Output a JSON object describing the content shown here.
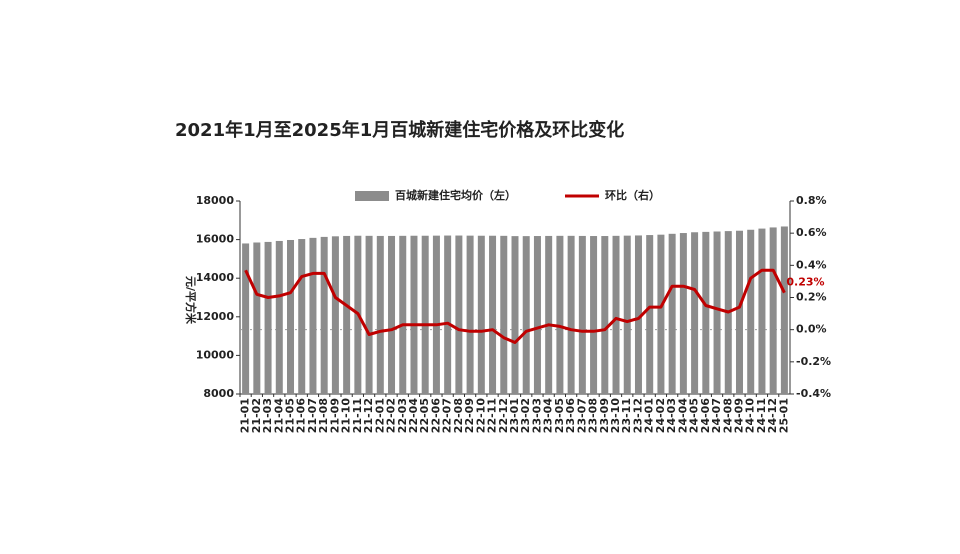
{
  "chart_data": {
    "type": "bar-line",
    "title": "2021年1月至2025年1月百城新建住宅价格及环比变化",
    "y_label": "元/平方米",
    "categories": [
      "21-01",
      "21-02",
      "21-03",
      "21-04",
      "21-05",
      "21-06",
      "21-07",
      "21-08",
      "21-09",
      "21-10",
      "21-11",
      "21-12",
      "22-01",
      "22-02",
      "22-03",
      "22-04",
      "22-05",
      "22-06",
      "22-07",
      "22-08",
      "22-09",
      "22-10",
      "22-11",
      "22-12",
      "23-01",
      "23-02",
      "23-03",
      "23-04",
      "23-05",
      "23-06",
      "23-07",
      "23-08",
      "23-09",
      "23-10",
      "23-11",
      "23-12",
      "24-01",
      "24-02",
      "24-03",
      "24-04",
      "24-05",
      "24-06",
      "24-07",
      "24-08",
      "24-09",
      "24-10",
      "24-11",
      "24-12",
      "25-01"
    ],
    "series": [
      {
        "name": "百城新建住宅均价（左）",
        "type": "bar",
        "color": "#8c8c8c",
        "values": [
          15800,
          15850,
          15880,
          15930,
          15980,
          16030,
          16090,
          16140,
          16170,
          16190,
          16200,
          16195,
          16190,
          16190,
          16195,
          16200,
          16200,
          16205,
          16210,
          16210,
          16205,
          16200,
          16200,
          16195,
          16180,
          16180,
          16185,
          16190,
          16195,
          16195,
          16190,
          16185,
          16185,
          16195,
          16205,
          16215,
          16235,
          16255,
          16300,
          16340,
          16380,
          16400,
          16420,
          16440,
          16460,
          16510,
          16570,
          16630,
          16680
        ]
      },
      {
        "name": "环比（右）",
        "type": "line",
        "axis": "y2",
        "color": "#c00000",
        "values": [
          0.37,
          0.22,
          0.2,
          0.21,
          0.23,
          0.33,
          0.35,
          0.35,
          0.2,
          0.15,
          0.1,
          -0.03,
          -0.01,
          0.0,
          0.03,
          0.03,
          0.03,
          0.03,
          0.04,
          0.0,
          -0.01,
          -0.01,
          0.0,
          -0.05,
          -0.08,
          -0.01,
          0.01,
          0.03,
          0.02,
          0.0,
          -0.01,
          -0.01,
          0.0,
          0.07,
          0.05,
          0.07,
          0.14,
          0.14,
          0.27,
          0.27,
          0.25,
          0.15,
          0.13,
          0.11,
          0.14,
          0.32,
          0.37,
          0.37,
          0.23
        ],
        "value_labels": [
          null,
          null,
          null,
          null,
          null,
          null,
          null,
          null,
          null,
          null,
          null,
          null,
          null,
          null,
          null,
          null,
          null,
          null,
          null,
          null,
          null,
          null,
          null,
          null,
          null,
          null,
          null,
          null,
          null,
          null,
          null,
          null,
          null,
          null,
          null,
          null,
          null,
          null,
          null,
          null,
          null,
          null,
          null,
          null,
          null,
          null,
          null,
          null,
          "0.23%"
        ]
      }
    ],
    "ylim": [
      8000,
      18000
    ],
    "yticks": [
      8000,
      10000,
      12000,
      14000,
      16000,
      18000
    ],
    "y2lim": [
      -0.4,
      0.8
    ],
    "y2ticks": [
      {
        "value": -0.4,
        "label": "-0.4%"
      },
      {
        "value": -0.2,
        "label": "-0.2%"
      },
      {
        "value": 0.0,
        "label": "0.0%"
      },
      {
        "value": 0.2,
        "label": "0.2%"
      },
      {
        "value": 0.4,
        "label": "0.4%"
      },
      {
        "value": 0.6,
        "label": "0.6%"
      },
      {
        "value": 0.8,
        "label": "0.8%"
      }
    ],
    "zero_line": true
  }
}
